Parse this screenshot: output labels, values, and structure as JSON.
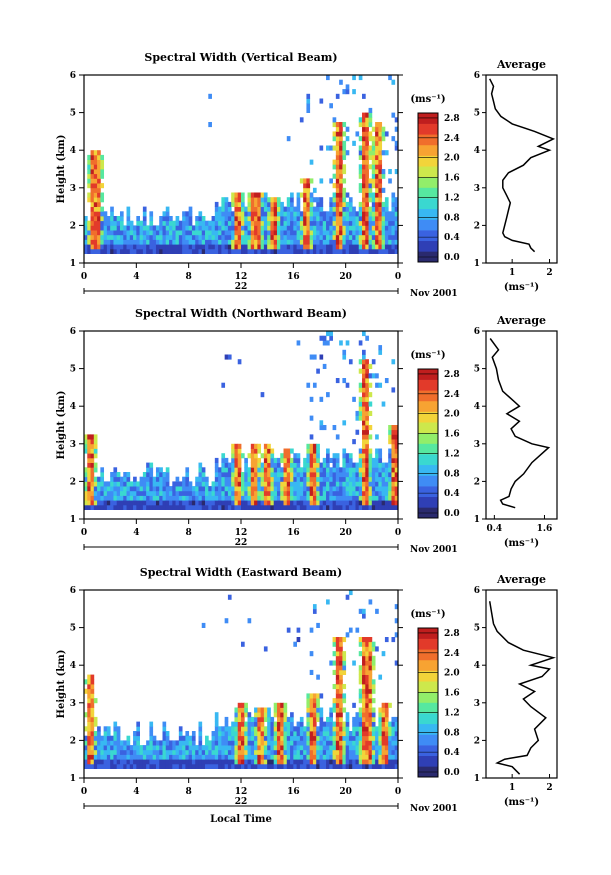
{
  "chart_data": [
    {
      "type": "heatmap",
      "title": "Spectral Width (Vertical Beam)",
      "ylabel": "Height (km)",
      "xticks": [
        "0",
        "4",
        "8",
        "12",
        "16",
        "20",
        "0"
      ],
      "yticks": [
        "1",
        "2",
        "3",
        "4",
        "5",
        "6"
      ],
      "date_label": "22",
      "date_suffix": "Nov 2001",
      "ylim": [
        1,
        6
      ],
      "xlim_hours": [
        0,
        24
      ],
      "colorbar_unit": "(ms⁻¹)",
      "colorbar_ticks": [
        "0.0",
        "0.4",
        "0.8",
        "1.2",
        "1.6",
        "2.0",
        "2.4",
        "2.8"
      ],
      "colorbar_range": [
        0,
        3.0
      ],
      "profile": {
        "title": "Average",
        "xticks": [
          "1",
          "2"
        ],
        "xlabel": "(ms⁻¹)",
        "xlim": [
          0.3,
          2.2
        ],
        "yticks": [
          "1",
          "2",
          "3",
          "4",
          "5",
          "6"
        ],
        "points": [
          [
            1.6,
            1.3
          ],
          [
            1.5,
            1.4
          ],
          [
            1.45,
            1.5
          ],
          [
            1.0,
            1.6
          ],
          [
            0.8,
            1.7
          ],
          [
            0.75,
            1.8
          ],
          [
            0.8,
            2.0
          ],
          [
            0.85,
            2.2
          ],
          [
            0.9,
            2.4
          ],
          [
            0.95,
            2.6
          ],
          [
            0.85,
            2.8
          ],
          [
            0.75,
            3.0
          ],
          [
            0.75,
            3.2
          ],
          [
            0.9,
            3.4
          ],
          [
            1.3,
            3.6
          ],
          [
            1.5,
            3.8
          ],
          [
            2.0,
            4.0
          ],
          [
            1.7,
            4.1
          ],
          [
            2.1,
            4.3
          ],
          [
            1.6,
            4.5
          ],
          [
            1.0,
            4.7
          ],
          [
            0.7,
            4.9
          ],
          [
            0.55,
            5.1
          ],
          [
            0.5,
            5.3
          ],
          [
            0.45,
            5.5
          ],
          [
            0.5,
            5.7
          ],
          [
            0.4,
            5.9
          ]
        ]
      }
    },
    {
      "type": "heatmap",
      "title": "Spectral Width (Northward Beam)",
      "ylabel": "Height (km)",
      "xticks": [
        "0",
        "4",
        "8",
        "12",
        "16",
        "20",
        "0"
      ],
      "yticks": [
        "1",
        "2",
        "3",
        "4",
        "5",
        "6"
      ],
      "date_label": "22",
      "date_suffix": "Nov 2001",
      "ylim": [
        1,
        6
      ],
      "xlim_hours": [
        0,
        24
      ],
      "colorbar_unit": "(ms⁻¹)",
      "colorbar_ticks": [
        "0.0",
        "0.4",
        "0.8",
        "1.2",
        "1.6",
        "2.0",
        "2.4",
        "2.8"
      ],
      "colorbar_range": [
        0,
        3.0
      ],
      "profile": {
        "title": "Average",
        "xticks": [
          "0.4",
          "1.6"
        ],
        "xlabel": "(ms⁻¹)",
        "xlim": [
          0.2,
          1.9
        ],
        "yticks": [
          "1",
          "2",
          "3",
          "4",
          "5",
          "6"
        ],
        "points": [
          [
            0.9,
            1.3
          ],
          [
            0.6,
            1.4
          ],
          [
            0.55,
            1.5
          ],
          [
            0.75,
            1.6
          ],
          [
            0.8,
            1.8
          ],
          [
            0.9,
            2.0
          ],
          [
            1.1,
            2.2
          ],
          [
            1.3,
            2.5
          ],
          [
            1.5,
            2.7
          ],
          [
            1.7,
            2.9
          ],
          [
            1.3,
            3.0
          ],
          [
            0.9,
            3.2
          ],
          [
            0.8,
            3.4
          ],
          [
            1.0,
            3.6
          ],
          [
            0.7,
            3.8
          ],
          [
            1.0,
            4.0
          ],
          [
            0.8,
            4.2
          ],
          [
            0.6,
            4.4
          ],
          [
            0.5,
            4.7
          ],
          [
            0.45,
            5.0
          ],
          [
            0.35,
            5.3
          ],
          [
            0.5,
            5.5
          ],
          [
            0.3,
            5.8
          ]
        ]
      }
    },
    {
      "type": "heatmap",
      "title": "Spectral Width (Eastward Beam)",
      "ylabel": "Height (km)",
      "xlabel": "Local Time",
      "xticks": [
        "0",
        "4",
        "8",
        "12",
        "16",
        "20",
        "0"
      ],
      "yticks": [
        "1",
        "2",
        "3",
        "4",
        "5",
        "6"
      ],
      "date_label": "22",
      "date_suffix": "Nov 2001",
      "ylim": [
        1,
        6
      ],
      "xlim_hours": [
        0,
        24
      ],
      "colorbar_unit": "(ms⁻¹)",
      "colorbar_ticks": [
        "0.0",
        "0.4",
        "0.8",
        "1.2",
        "1.6",
        "2.0",
        "2.4",
        "2.8"
      ],
      "colorbar_range": [
        0,
        3.0
      ],
      "profile": {
        "title": "Average",
        "xticks": [
          "1",
          "2"
        ],
        "xlabel": "(ms⁻¹)",
        "xlim": [
          0.3,
          2.2
        ],
        "yticks": [
          "1",
          "2",
          "3",
          "4",
          "5",
          "6"
        ],
        "points": [
          [
            1.2,
            1.1
          ],
          [
            1.0,
            1.3
          ],
          [
            0.6,
            1.4
          ],
          [
            0.8,
            1.5
          ],
          [
            1.4,
            1.6
          ],
          [
            1.5,
            1.8
          ],
          [
            1.7,
            2.0
          ],
          [
            1.6,
            2.3
          ],
          [
            1.9,
            2.6
          ],
          [
            1.5,
            2.9
          ],
          [
            1.3,
            3.1
          ],
          [
            1.6,
            3.3
          ],
          [
            1.2,
            3.5
          ],
          [
            1.8,
            3.7
          ],
          [
            2.0,
            3.9
          ],
          [
            1.5,
            4.0
          ],
          [
            2.1,
            4.2
          ],
          [
            1.3,
            4.4
          ],
          [
            0.9,
            4.6
          ],
          [
            0.6,
            4.9
          ],
          [
            0.5,
            5.1
          ],
          [
            0.45,
            5.4
          ],
          [
            0.4,
            5.7
          ]
        ]
      }
    }
  ],
  "colors": [
    "#2a2a6e",
    "#2f3fb5",
    "#3a62e0",
    "#3f8cf5",
    "#38b8f2",
    "#3ad8d0",
    "#56e8a0",
    "#92ee6a",
    "#cde84c",
    "#f2d43a",
    "#f7a332",
    "#f06e2c",
    "#e23a2a",
    "#c01e1e"
  ]
}
